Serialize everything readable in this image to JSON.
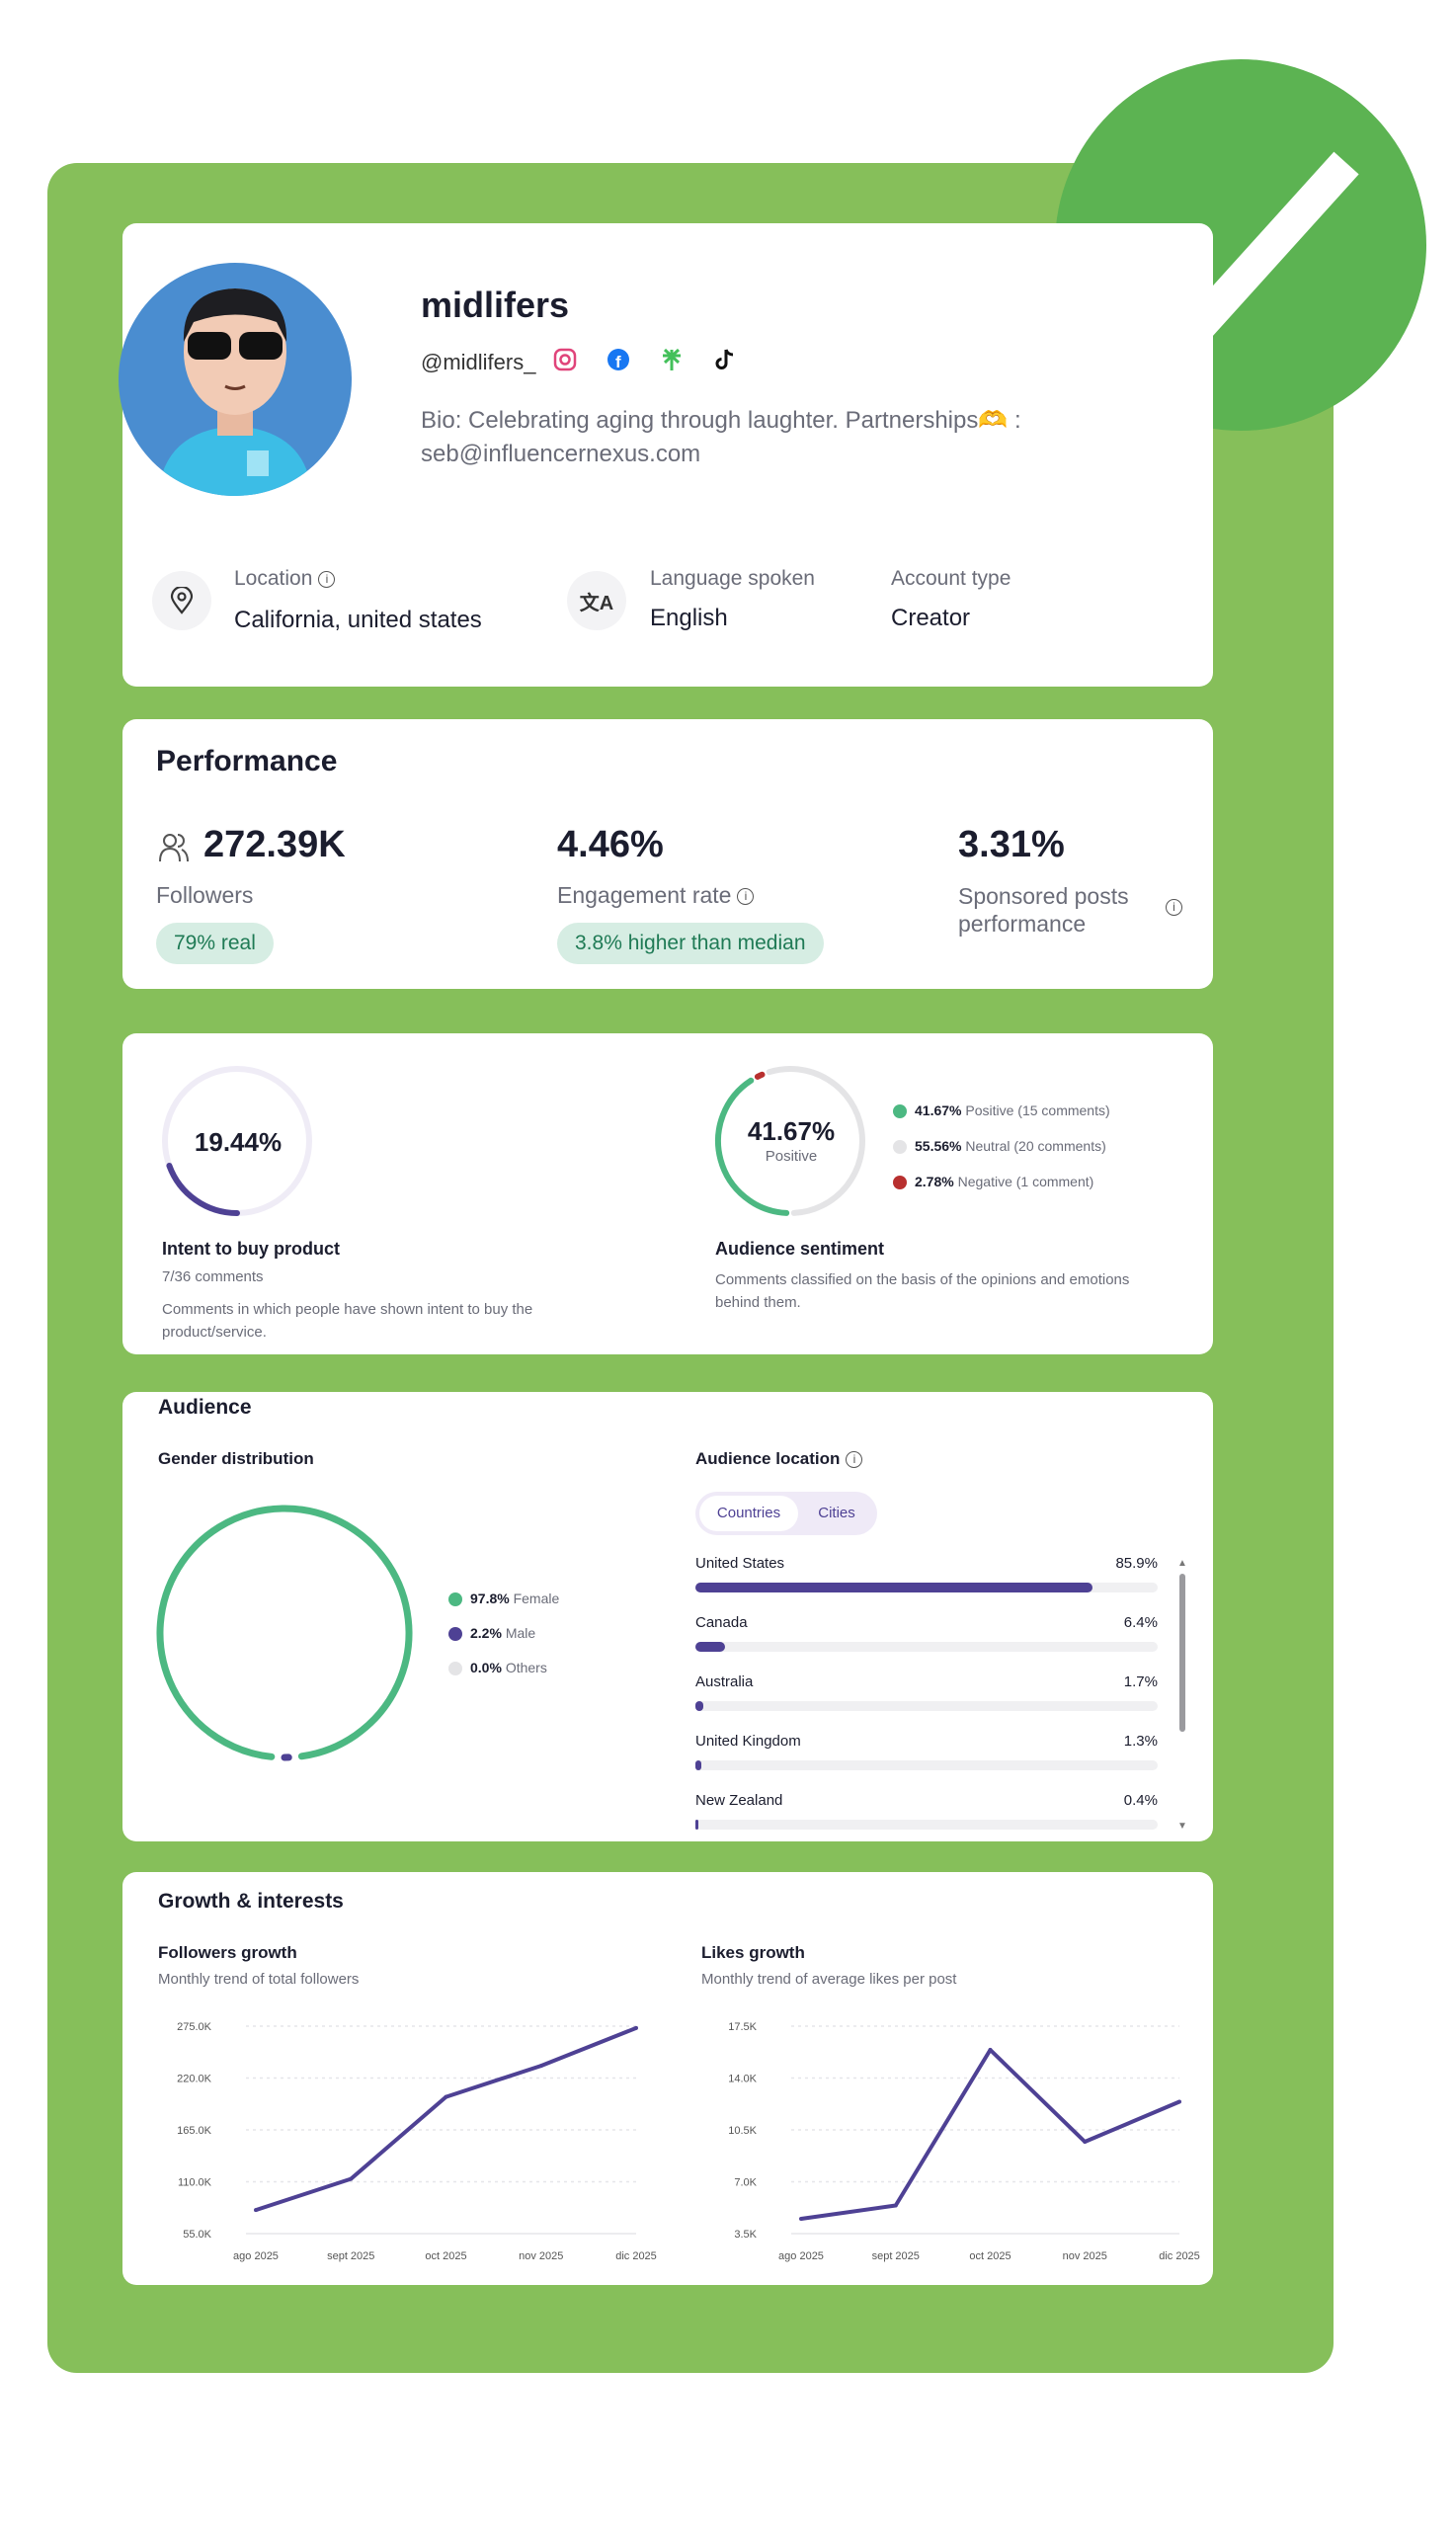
{
  "profile": {
    "name": "midlifers",
    "handle": "@midlifers_",
    "social_icons": [
      "instagram-icon",
      "facebook-icon",
      "linktree-icon",
      "tiktok-icon"
    ],
    "bio_line1": "Bio: Celebrating aging through laughter. Partnerships",
    "bio_emoji": "🫶",
    "bio_colon": ":",
    "bio_line2": "seb@influencernexus.com",
    "location_label": "Location",
    "location_value": "California, united states",
    "language_label": "Language spoken",
    "language_value": "English",
    "account_label": "Account type",
    "account_value": "Creator"
  },
  "performance": {
    "title": "Performance",
    "followers_value": "272.39K",
    "followers_label": "Followers",
    "followers_badge": "79% real",
    "engagement_value": "4.46%",
    "engagement_label": "Engagement rate",
    "engagement_badge": "3.8% higher than median",
    "sponsored_value": "3.31%",
    "sponsored_label_1": "Sponsored posts",
    "sponsored_label_2": "performance"
  },
  "intent": {
    "percent": 19.44,
    "percent_label": "19.44%",
    "title": "Intent to buy product",
    "count": "7/36 comments",
    "desc1": "Comments in which people have shown intent to buy the",
    "desc2": "product/service."
  },
  "sentiment": {
    "center_value": "41.67%",
    "center_label": "Positive",
    "items": [
      {
        "pct": "41.67%",
        "label": "Positive (15 comments)",
        "value": 41.67,
        "color": "#4cb882"
      },
      {
        "pct": "55.56%",
        "label": "Neutral (20 comments)",
        "value": 55.56,
        "color": "#e4e4e6"
      },
      {
        "pct": "2.78%",
        "label": "Negative (1 comment)",
        "value": 2.78,
        "color": "#b8302f"
      }
    ],
    "title": "Audience sentiment",
    "desc1": "Comments classified on the basis of the opinions and emotions",
    "desc2": "behind them."
  },
  "audience": {
    "title": "Audience",
    "gender_title": "Gender distribution",
    "gender": [
      {
        "pct": "97.8%",
        "label": "Female",
        "value": 97.8,
        "color": "#4cb882"
      },
      {
        "pct": "2.2%",
        "label": "Male",
        "value": 2.2,
        "color": "#4e4194"
      },
      {
        "pct": "0.0%",
        "label": "Others",
        "value": 0.0,
        "color": "#e4e4e6"
      }
    ],
    "location_title": "Audience location",
    "tabs": [
      "Countries",
      "Cities"
    ],
    "active_tab": "Countries",
    "countries": [
      {
        "name": "United States",
        "pct": "85.9%",
        "value": 85.9
      },
      {
        "name": "Canada",
        "pct": "6.4%",
        "value": 6.4
      },
      {
        "name": "Australia",
        "pct": "1.7%",
        "value": 1.7
      },
      {
        "name": "United Kingdom",
        "pct": "1.3%",
        "value": 1.3
      },
      {
        "name": "New Zealand",
        "pct": "0.4%",
        "value": 0.4
      }
    ]
  },
  "growth": {
    "title": "Growth & interests"
  },
  "chart_data": [
    {
      "type": "line",
      "title": "Followers growth",
      "subtitle": "Monthly trend of total followers",
      "categories": [
        "ago 2025",
        "sept 2025",
        "oct 2025",
        "nov 2025",
        "dic 2025"
      ],
      "values": [
        80000,
        113000,
        200000,
        233000,
        273000
      ],
      "yticks": [
        "275.0K",
        "220.0K",
        "165.0K",
        "110.0K",
        "55.0K"
      ],
      "ylim": [
        55000,
        275000
      ],
      "grid": true,
      "color": "#4e4194"
    },
    {
      "type": "line",
      "title": "Likes growth",
      "subtitle": "Monthly trend of average likes per post",
      "categories": [
        "ago 2025",
        "sept 2025",
        "oct 2025",
        "nov 2025",
        "dic 2025"
      ],
      "values": [
        4500,
        5400,
        15900,
        9700,
        12400
      ],
      "yticks": [
        "17.5K",
        "14.0K",
        "10.5K",
        "7.0K",
        "3.5K"
      ],
      "ylim": [
        3500,
        17500
      ],
      "grid": true,
      "color": "#4e4194"
    }
  ],
  "colors": {
    "panel": "#86bf5a",
    "check": "#5cb352",
    "accent": "#4e4194",
    "positive": "#4cb882"
  }
}
